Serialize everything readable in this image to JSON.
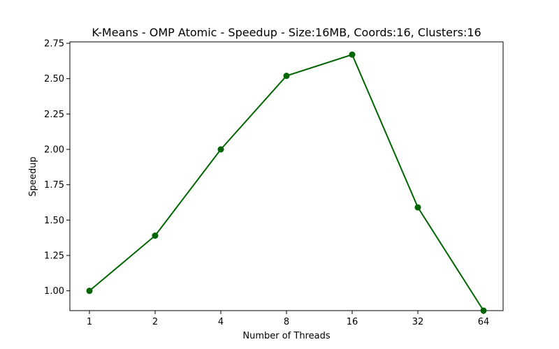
{
  "chart_data": {
    "type": "line",
    "title": "K-Means - OMP Atomic - Speedup - Size:16MB, Coords:16, Clusters:16",
    "xlabel": "Number of Threads",
    "ylabel": "Speedup",
    "categories": [
      "1",
      "2",
      "4",
      "8",
      "16",
      "32",
      "64"
    ],
    "values": [
      1.0,
      1.39,
      2.0,
      2.52,
      2.67,
      1.59,
      0.86
    ],
    "ylim": [
      0.86,
      2.76
    ],
    "yticks": [
      "1.00",
      "1.25",
      "1.50",
      "1.75",
      "2.00",
      "2.25",
      "2.50",
      "2.75"
    ],
    "grid": false,
    "marker": "circle",
    "color": "#006400"
  }
}
